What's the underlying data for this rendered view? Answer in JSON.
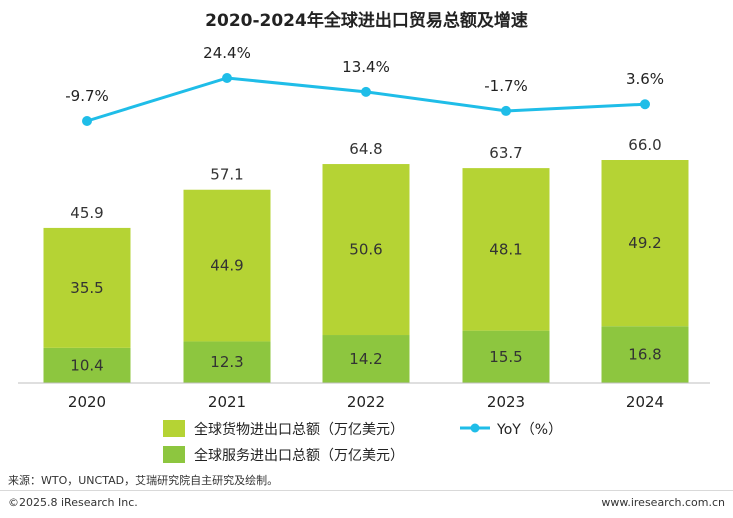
{
  "title": "2020-2024年全球进出口贸易总额及增速",
  "chart_data": {
    "type": "bar",
    "stacked": true,
    "title": "2020-2024年全球进出口贸易总额及增速",
    "categories": [
      "2020",
      "2021",
      "2022",
      "2023",
      "2024"
    ],
    "series": [
      {
        "name": "全球服务进出口总额（万亿美元）",
        "values": [
          10.4,
          12.3,
          14.2,
          15.5,
          16.8
        ],
        "color": "#8dc63f"
      },
      {
        "name": "全球货物进出口总额（万亿美元）",
        "values": [
          35.5,
          44.9,
          50.6,
          48.1,
          49.2
        ],
        "color": "#b5d334"
      }
    ],
    "totals": [
      "45.9",
      "57.1",
      "64.8",
      "63.7",
      "66.0"
    ],
    "line_series": {
      "name": "YoY（%）",
      "values": [
        -9.7,
        24.4,
        13.4,
        -1.7,
        3.6
      ],
      "labels": [
        "-9.7%",
        "24.4%",
        "13.4%",
        "-1.7%",
        "3.6%"
      ],
      "color": "#1fbde8"
    },
    "ylim": [
      0,
      70
    ],
    "y2lim": [
      -60,
      30
    ],
    "grid": false,
    "legend_placement": "bottom"
  },
  "footer": {
    "source": "来源：WTO，UNCTAD，艾瑞研究院自主研究及绘制。",
    "copyright": "©2025.8 iResearch Inc.",
    "website": "www.iresearch.com.cn"
  }
}
